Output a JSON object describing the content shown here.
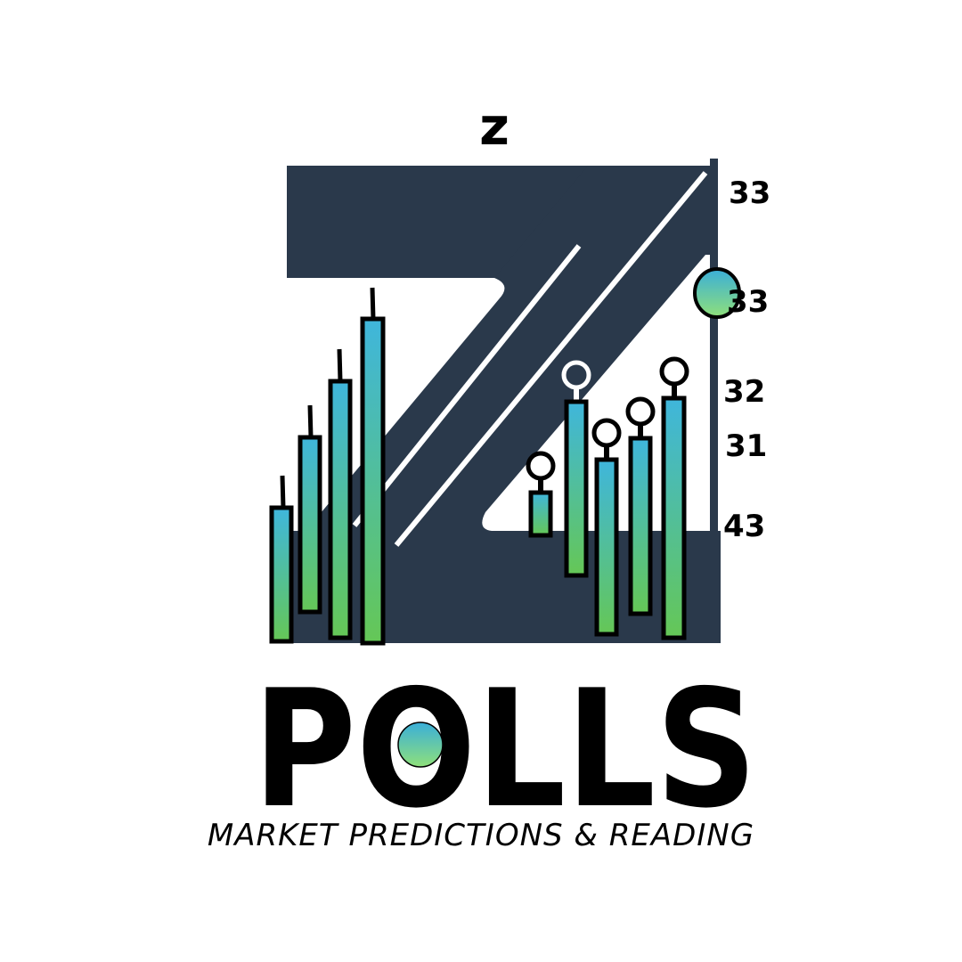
{
  "logo": {
    "top_letter": "z",
    "brand_name": "POLLS",
    "tagline": "MARKET PREDICTIONS & READING"
  },
  "scale_labels": [
    "33",
    "33",
    "32",
    "31",
    "43"
  ],
  "colors": {
    "navy": "#2a394b",
    "gradient_top": "#3fb6dc",
    "gradient_bottom": "#65c756",
    "outline": "#000000",
    "white": "#ffffff"
  },
  "candles": {
    "left_group_count": 4,
    "right_group_count": 5,
    "right_group_markers": "ring"
  }
}
